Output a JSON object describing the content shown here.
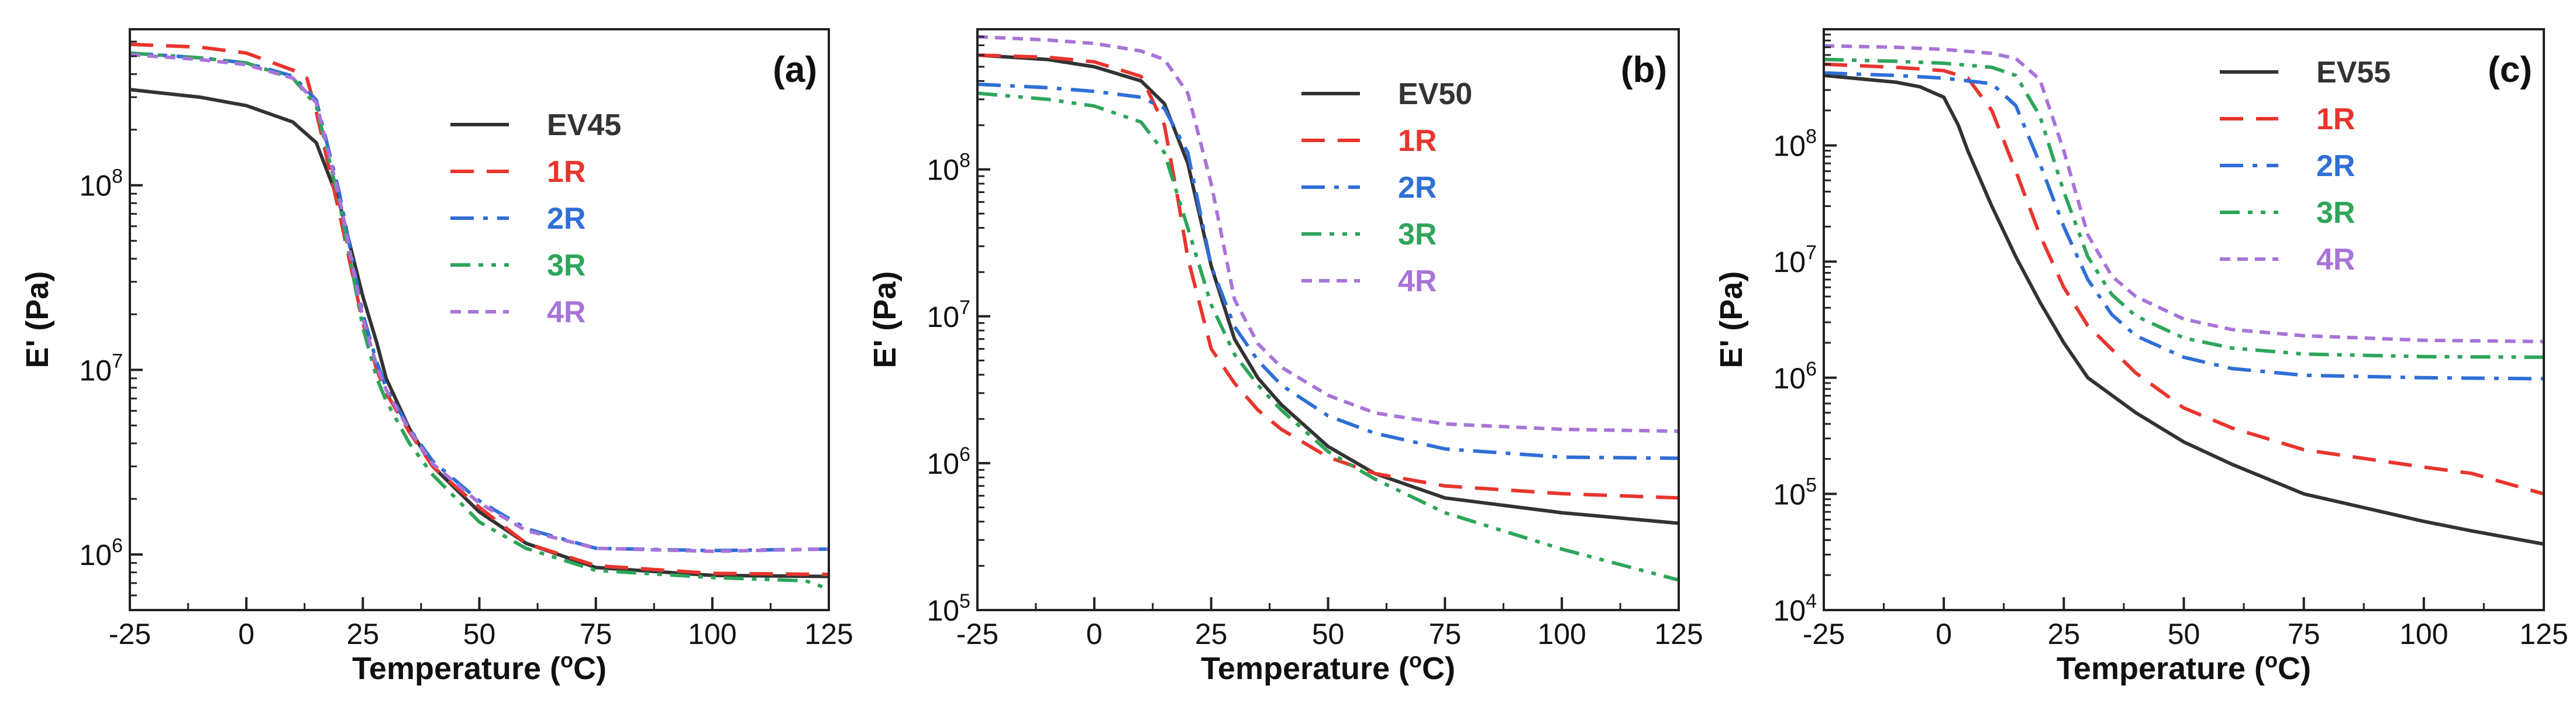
{
  "chart_data": [
    {
      "type": "line",
      "panel_label": "(a)",
      "xlabel": "Temperature (",
      "xlabel_sup": "o",
      "xlabel_end": "C)",
      "ylabel": "E' (Pa)",
      "xlim": [
        -25,
        125
      ],
      "ylim": [
        500000,
        700000000
      ],
      "yscale": "log",
      "x_ticks": [
        "-25",
        "0",
        "25",
        "50",
        "75",
        "100",
        "125"
      ],
      "y_ticks": [
        {
          "base": "10",
          "exp": "6",
          "value": 1000000
        },
        {
          "base": "10",
          "exp": "7",
          "value": 10000000
        },
        {
          "base": "10",
          "exp": "8",
          "value": 100000000
        }
      ],
      "legend_position": "center-right",
      "series": [
        {
          "name": "EV45",
          "color": "#333333",
          "dash": "solid",
          "x": [
            -25,
            -10,
            0,
            10,
            15,
            20,
            25,
            28,
            30,
            35,
            40,
            50,
            60,
            75,
            100,
            125
          ],
          "values": [
            330000000,
            300000000,
            270000000,
            220000000,
            170000000,
            80000000,
            25000000,
            14000000,
            9000000,
            4800000,
            3000000,
            1700000,
            1150000,
            850000,
            770000,
            760000
          ]
        },
        {
          "name": "1R",
          "color": "#e8352e",
          "dash": "dashed",
          "x": [
            -25,
            -10,
            0,
            10,
            13,
            15,
            20,
            25,
            28,
            30,
            35,
            40,
            50,
            60,
            75,
            100,
            125
          ],
          "values": [
            580000000,
            560000000,
            520000000,
            420000000,
            380000000,
            250000000,
            70000000,
            18000000,
            10000000,
            7500000,
            4600000,
            3000000,
            1800000,
            1150000,
            870000,
            790000,
            780000
          ]
        },
        {
          "name": "2R",
          "color": "#2f6fd6",
          "dash": "dashdot",
          "x": [
            -25,
            -10,
            0,
            10,
            15,
            20,
            25,
            28,
            30,
            35,
            40,
            50,
            60,
            75,
            100,
            125
          ],
          "values": [
            520000000,
            490000000,
            460000000,
            390000000,
            290000000,
            90000000,
            20000000,
            11000000,
            8000000,
            4800000,
            3200000,
            1950000,
            1380000,
            1080000,
            1050000,
            1070000
          ]
        },
        {
          "name": "3R",
          "color": "#2ea55a",
          "dash": "dashdotdot",
          "x": [
            -25,
            -10,
            0,
            10,
            15,
            20,
            25,
            28,
            30,
            35,
            40,
            50,
            60,
            75,
            100,
            120,
            125
          ],
          "values": [
            520000000,
            490000000,
            460000000,
            380000000,
            270000000,
            80000000,
            17000000,
            9000000,
            6800000,
            4000000,
            2700000,
            1500000,
            1080000,
            820000,
            750000,
            720000,
            650000
          ]
        },
        {
          "name": "4R",
          "color": "#a874d8",
          "dash": "shortdash",
          "x": [
            -25,
            -10,
            0,
            10,
            15,
            20,
            25,
            28,
            30,
            35,
            40,
            50,
            60,
            75,
            100,
            125
          ],
          "values": [
            510000000,
            480000000,
            450000000,
            380000000,
            280000000,
            85000000,
            19000000,
            10500000,
            7800000,
            4700000,
            3100000,
            1900000,
            1350000,
            1080000,
            1040000,
            1070000
          ]
        }
      ]
    },
    {
      "type": "line",
      "panel_label": "(b)",
      "xlabel": "Temperature (",
      "xlabel_sup": "o",
      "xlabel_end": "C)",
      "ylabel": "E' (Pa)",
      "xlim": [
        -25,
        125
      ],
      "ylim": [
        100000,
        900000000
      ],
      "yscale": "log",
      "x_ticks": [
        "-25",
        "0",
        "25",
        "50",
        "75",
        "100",
        "125"
      ],
      "y_ticks": [
        {
          "base": "10",
          "exp": "5",
          "value": 100000
        },
        {
          "base": "10",
          "exp": "6",
          "value": 1000000
        },
        {
          "base": "10",
          "exp": "7",
          "value": 10000000
        },
        {
          "base": "10",
          "exp": "8",
          "value": 100000000
        }
      ],
      "legend_position": "top-right",
      "series": [
        {
          "name": "EV50",
          "color": "#333333",
          "dash": "solid",
          "x": [
            -25,
            -10,
            0,
            10,
            15,
            20,
            25,
            30,
            35,
            40,
            50,
            60,
            75,
            100,
            125
          ],
          "values": [
            600000000,
            560000000,
            500000000,
            400000000,
            280000000,
            110000000,
            22000000,
            7000000,
            3800000,
            2500000,
            1300000,
            850000,
            580000,
            460000,
            390000
          ]
        },
        {
          "name": "1R",
          "color": "#e8352e",
          "dash": "dashed",
          "x": [
            -25,
            -10,
            0,
            10,
            15,
            18,
            20,
            25,
            30,
            35,
            40,
            50,
            60,
            75,
            100,
            125
          ],
          "values": [
            600000000,
            580000000,
            540000000,
            430000000,
            200000000,
            60000000,
            25000000,
            6000000,
            3500000,
            2300000,
            1700000,
            1100000,
            850000,
            700000,
            620000,
            580000
          ]
        },
        {
          "name": "2R",
          "color": "#2f6fd6",
          "dash": "dashdot",
          "x": [
            -25,
            -10,
            0,
            10,
            15,
            20,
            23,
            25,
            30,
            35,
            40,
            50,
            60,
            75,
            100,
            125
          ],
          "values": [
            380000000,
            360000000,
            340000000,
            310000000,
            260000000,
            130000000,
            45000000,
            22000000,
            8500000,
            5000000,
            3400000,
            2100000,
            1600000,
            1250000,
            1100000,
            1080000
          ]
        },
        {
          "name": "3R",
          "color": "#2ea55a",
          "dash": "dashdotdot",
          "x": [
            -25,
            -10,
            0,
            10,
            15,
            20,
            25,
            30,
            35,
            40,
            50,
            60,
            75,
            100,
            125
          ],
          "values": [
            330000000,
            300000000,
            270000000,
            210000000,
            130000000,
            40000000,
            12000000,
            5500000,
            3400000,
            2300000,
            1200000,
            780000,
            460000,
            260000,
            160000
          ]
        },
        {
          "name": "4R",
          "color": "#a874d8",
          "dash": "shortdash",
          "x": [
            -25,
            -10,
            0,
            10,
            15,
            20,
            25,
            30,
            35,
            40,
            50,
            60,
            75,
            100,
            125
          ],
          "values": [
            800000000,
            760000000,
            720000000,
            640000000,
            560000000,
            330000000,
            80000000,
            13000000,
            6500000,
            4500000,
            2900000,
            2200000,
            1850000,
            1700000,
            1650000
          ]
        }
      ]
    },
    {
      "type": "line",
      "panel_label": "(c)",
      "xlabel": "Temperature (",
      "xlabel_sup": "o",
      "xlabel_end": "C)",
      "ylabel": "E' (Pa)",
      "xlim": [
        -25,
        125
      ],
      "ylim": [
        10000,
        1000000000
      ],
      "yscale": "log",
      "x_ticks": [
        "-25",
        "0",
        "25",
        "50",
        "75",
        "100",
        "125"
      ],
      "y_ticks": [
        {
          "base": "10",
          "exp": "4",
          "value": 10000
        },
        {
          "base": "10",
          "exp": "5",
          "value": 100000
        },
        {
          "base": "10",
          "exp": "6",
          "value": 1000000
        },
        {
          "base": "10",
          "exp": "7",
          "value": 10000000
        },
        {
          "base": "10",
          "exp": "8",
          "value": 100000000
        }
      ],
      "legend_position": "top-right",
      "series": [
        {
          "name": "EV55",
          "color": "#333333",
          "dash": "solid",
          "x": [
            -25,
            -10,
            -5,
            0,
            3,
            5,
            10,
            15,
            20,
            25,
            30,
            40,
            50,
            60,
            75,
            100,
            110,
            125
          ],
          "values": [
            400000000,
            350000000,
            320000000,
            260000000,
            150000000,
            90000000,
            30000000,
            11000000,
            4500000,
            2000000,
            1000000,
            500000,
            280000,
            180000,
            100000,
            58000,
            48000,
            37000
          ]
        },
        {
          "name": "1R",
          "color": "#e8352e",
          "dash": "dashed",
          "x": [
            -25,
            -10,
            0,
            5,
            10,
            15,
            20,
            25,
            30,
            40,
            50,
            60,
            75,
            100,
            110,
            125
          ],
          "values": [
            500000000,
            470000000,
            440000000,
            380000000,
            200000000,
            60000000,
            17000000,
            6000000,
            2800000,
            1100000,
            550000,
            370000,
            240000,
            170000,
            150000,
            100000
          ]
        },
        {
          "name": "2R",
          "color": "#2f6fd6",
          "dash": "dashdot",
          "x": [
            -25,
            -10,
            0,
            10,
            15,
            20,
            25,
            30,
            35,
            40,
            50,
            60,
            75,
            100,
            125
          ],
          "values": [
            420000000,
            400000000,
            380000000,
            340000000,
            220000000,
            70000000,
            20000000,
            7000000,
            3500000,
            2300000,
            1500000,
            1200000,
            1050000,
            1000000,
            980000
          ]
        },
        {
          "name": "3R",
          "color": "#2ea55a",
          "dash": "dashdotdot",
          "x": [
            -25,
            -10,
            0,
            10,
            15,
            20,
            25,
            30,
            35,
            40,
            50,
            60,
            75,
            100,
            125
          ],
          "values": [
            550000000,
            530000000,
            510000000,
            470000000,
            400000000,
            180000000,
            40000000,
            11000000,
            5200000,
            3400000,
            2200000,
            1800000,
            1600000,
            1520000,
            1500000
          ]
        },
        {
          "name": "4R",
          "color": "#a874d8",
          "dash": "shortdash",
          "x": [
            -25,
            -10,
            0,
            10,
            15,
            20,
            25,
            30,
            35,
            40,
            50,
            60,
            75,
            100,
            125
          ],
          "values": [
            720000000,
            700000000,
            670000000,
            620000000,
            560000000,
            370000000,
            90000000,
            17000000,
            7500000,
            5000000,
            3200000,
            2600000,
            2300000,
            2100000,
            2050000
          ]
        }
      ]
    }
  ]
}
